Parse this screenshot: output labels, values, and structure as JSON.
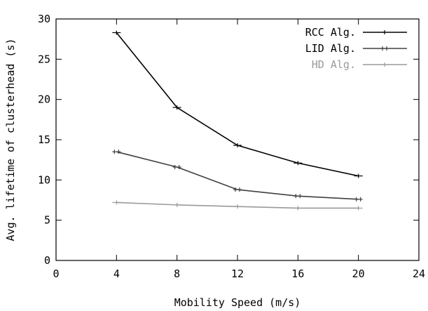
{
  "chart_data": {
    "type": "line",
    "xlabel": "Mobility Speed (m/s)",
    "ylabel": "Avg. lifetime of clusterhead (s)",
    "xlim": [
      0,
      24
    ],
    "ylim": [
      0,
      30
    ],
    "xticks": [
      0,
      4,
      8,
      12,
      16,
      20,
      24
    ],
    "yticks": [
      0,
      5,
      10,
      15,
      20,
      25,
      30
    ],
    "grid": false,
    "legend_position": "top-right",
    "x": [
      4,
      8,
      12,
      16,
      20
    ],
    "series": [
      {
        "name": "RCC Alg.",
        "color": "#000000",
        "values": [
          28.3,
          19.0,
          14.3,
          12.1,
          10.5
        ]
      },
      {
        "name": "LID Alg.",
        "color": "#404040",
        "values": [
          13.5,
          11.6,
          8.8,
          8.0,
          7.6
        ]
      },
      {
        "name": "HD Alg.",
        "color": "#9a9a9a",
        "values": [
          7.2,
          6.9,
          6.7,
          6.5,
          6.5
        ]
      }
    ]
  }
}
